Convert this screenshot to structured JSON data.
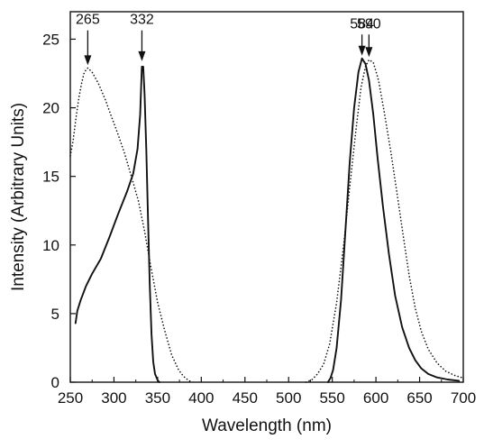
{
  "chart_data": {
    "type": "line",
    "title": "",
    "xlabel": "Wavelength (nm)",
    "ylabel": "Intensity (Arbitrary Units)",
    "xlim": [
      250,
      700
    ],
    "ylim": [
      0,
      27
    ],
    "xticks": [
      250,
      300,
      350,
      400,
      450,
      500,
      550,
      600,
      650,
      700
    ],
    "yticks": [
      0,
      5,
      10,
      15,
      20,
      25
    ],
    "grid": false,
    "legend": "none",
    "series": [
      {
        "style": "solid",
        "points": [
          [
            256,
            4.3
          ],
          [
            258,
            5.2
          ],
          [
            262,
            6.0
          ],
          [
            268,
            7.0
          ],
          [
            275,
            7.9
          ],
          [
            285,
            9.0
          ],
          [
            295,
            10.6
          ],
          [
            305,
            12.3
          ],
          [
            315,
            13.9
          ],
          [
            322,
            15.2
          ],
          [
            327,
            17.0
          ],
          [
            330,
            19.5
          ],
          [
            332,
            23.0
          ],
          [
            333.5,
            23.0
          ],
          [
            335,
            21.0
          ],
          [
            337,
            17.0
          ],
          [
            339,
            12.0
          ],
          [
            341,
            7.0
          ],
          [
            343,
            3.5
          ],
          [
            345,
            1.5
          ],
          [
            347,
            0.6
          ],
          [
            350,
            0.15
          ],
          [
            352,
            0
          ]
        ]
      },
      {
        "style": "solid",
        "points": [
          [
            545,
            0
          ],
          [
            548,
            0.3
          ],
          [
            551,
            0.9
          ],
          [
            555,
            2.5
          ],
          [
            560,
            6.0
          ],
          [
            565,
            11.0
          ],
          [
            570,
            16.0
          ],
          [
            575,
            20.0
          ],
          [
            580,
            22.6
          ],
          [
            584,
            23.6
          ],
          [
            588,
            23.2
          ],
          [
            592,
            22.0
          ],
          [
            597,
            19.5
          ],
          [
            602,
            16.3
          ],
          [
            608,
            12.8
          ],
          [
            615,
            9.3
          ],
          [
            622,
            6.3
          ],
          [
            630,
            4.0
          ],
          [
            638,
            2.5
          ],
          [
            645,
            1.6
          ],
          [
            652,
            1.0
          ],
          [
            660,
            0.6
          ],
          [
            670,
            0.35
          ],
          [
            682,
            0.2
          ],
          [
            695,
            0.1
          ]
        ]
      },
      {
        "style": "dotted",
        "points": [
          [
            250,
            16.5
          ],
          [
            253,
            17.5
          ],
          [
            257,
            19.5
          ],
          [
            260,
            20.8
          ],
          [
            263,
            21.8
          ],
          [
            266,
            22.6
          ],
          [
            270,
            22.9
          ],
          [
            275,
            22.6
          ],
          [
            282,
            21.8
          ],
          [
            290,
            20.6
          ],
          [
            298,
            19.2
          ],
          [
            305,
            18.0
          ],
          [
            312,
            16.7
          ],
          [
            320,
            15.0
          ],
          [
            328,
            13.2
          ],
          [
            335,
            11.0
          ],
          [
            342,
            8.5
          ],
          [
            350,
            5.8
          ],
          [
            358,
            3.8
          ],
          [
            366,
            2.0
          ],
          [
            374,
            0.9
          ],
          [
            380,
            0.4
          ],
          [
            386,
            0.1
          ],
          [
            390,
            0
          ]
        ]
      },
      {
        "style": "dotted",
        "points": [
          [
            520,
            0
          ],
          [
            527,
            0.2
          ],
          [
            533,
            0.6
          ],
          [
            540,
            1.3
          ],
          [
            547,
            2.8
          ],
          [
            555,
            5.8
          ],
          [
            563,
            10.0
          ],
          [
            570,
            14.2
          ],
          [
            577,
            18.3
          ],
          [
            583,
            21.5
          ],
          [
            588,
            23.0
          ],
          [
            592,
            23.5
          ],
          [
            597,
            23.3
          ],
          [
            603,
            22.0
          ],
          [
            610,
            19.5
          ],
          [
            617,
            16.8
          ],
          [
            624,
            13.8
          ],
          [
            631,
            10.8
          ],
          [
            638,
            7.8
          ],
          [
            645,
            5.4
          ],
          [
            652,
            3.7
          ],
          [
            660,
            2.4
          ],
          [
            670,
            1.4
          ],
          [
            680,
            0.8
          ],
          [
            690,
            0.5
          ],
          [
            700,
            0.3
          ]
        ]
      }
    ],
    "annotations": [
      {
        "text": "265",
        "x": 270,
        "y": 22.9,
        "label_y": 26.1
      },
      {
        "text": "332",
        "x": 332,
        "y": 23.2,
        "label_y": 26.1
      },
      {
        "text": "584",
        "x": 584,
        "y": 23.6,
        "label_y": 25.8
      },
      {
        "text": "590",
        "x": 592,
        "y": 23.5,
        "label_y": 25.8
      }
    ]
  }
}
